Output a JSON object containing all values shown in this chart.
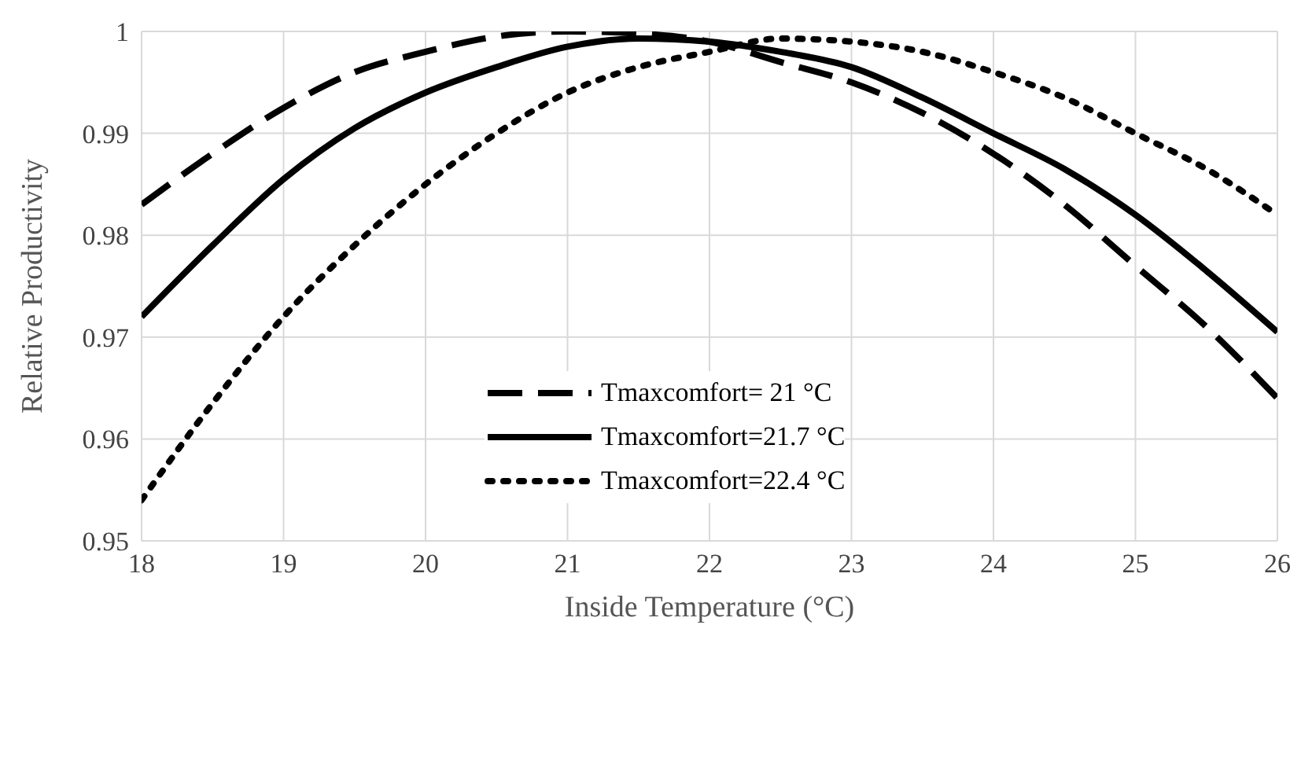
{
  "chart_data": {
    "type": "line",
    "xlabel": "Inside Temperature (°C)",
    "ylabel": "Relative Productivity",
    "x": [
      18,
      18.5,
      19,
      19.5,
      20,
      20.5,
      21,
      21.5,
      22,
      22.5,
      23,
      23.5,
      24,
      24.5,
      25,
      25.5,
      26
    ],
    "xlim": [
      18,
      26
    ],
    "xticks": [
      18,
      19,
      20,
      21,
      22,
      23,
      24,
      25,
      26
    ],
    "ylim": [
      0.95,
      1
    ],
    "yticks": [
      0.95,
      0.96,
      0.97,
      0.98,
      0.99,
      1
    ],
    "grid": true,
    "legend": "bottom",
    "marker": "none",
    "series": [
      {
        "name": "Tmaxcomfort= 21 °C",
        "color": "#000000",
        "line_style": "dashed",
        "values": [
          0.983,
          0.988,
          0.9925,
          0.996,
          0.998,
          0.9995,
          1.0,
          0.9998,
          0.999,
          0.997,
          0.995,
          0.992,
          0.988,
          0.983,
          0.977,
          0.971,
          0.964
        ]
      },
      {
        "name": "Tmaxcomfort=21.7 °C",
        "color": "#000000",
        "line_style": "solid",
        "values": [
          0.972,
          0.979,
          0.9855,
          0.9905,
          0.994,
          0.9965,
          0.9985,
          0.9993,
          0.999,
          0.998,
          0.9965,
          0.9935,
          0.99,
          0.9865,
          0.982,
          0.9765,
          0.9705
        ]
      },
      {
        "name": "Tmaxcomfort=22.4 °C",
        "color": "#000000",
        "line_style": "dotted",
        "values": [
          0.954,
          0.9635,
          0.972,
          0.979,
          0.985,
          0.99,
          0.994,
          0.9965,
          0.998,
          0.9993,
          0.999,
          0.998,
          0.996,
          0.9935,
          0.99,
          0.9865,
          0.982
        ]
      }
    ]
  }
}
